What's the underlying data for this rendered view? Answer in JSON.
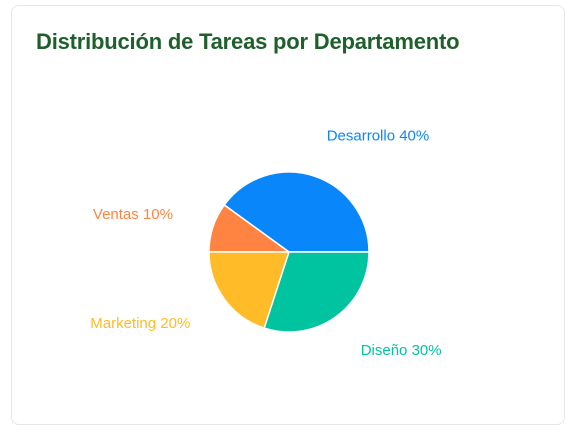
{
  "card": {
    "title": "Distribución de Tareas por Departamento"
  },
  "chart_data": {
    "type": "pie",
    "slices": [
      {
        "label": "Desarrollo 40%",
        "category": "Desarrollo",
        "value": 40,
        "color": "#0a86fb"
      },
      {
        "label": "Ventas 10%",
        "category": "Ventas",
        "value": 10,
        "color": "#ff8442"
      },
      {
        "label": "Marketing 20%",
        "category": "Marketing",
        "value": 20,
        "color": "#ffbb28"
      },
      {
        "label": "Diseño 30%",
        "category": "Diseño",
        "value": 30,
        "color": "#00c49f"
      }
    ],
    "start_angle_deg": 0,
    "direction": "clockwise-on-screen",
    "legend": "none"
  }
}
